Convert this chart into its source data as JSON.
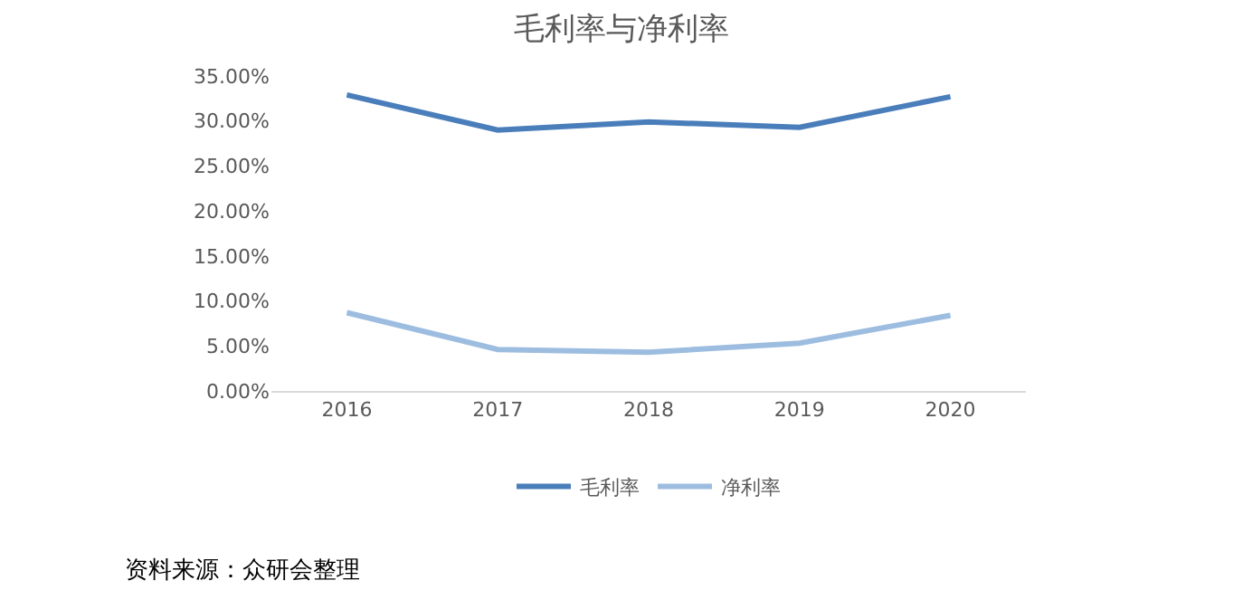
{
  "chart_data": {
    "type": "line",
    "title": "毛利率与净利率",
    "categories": [
      "2016",
      "2017",
      "2018",
      "2019",
      "2020"
    ],
    "series": [
      {
        "name": "毛利率",
        "color": "#4a7ebb",
        "values": [
          32.9,
          29.0,
          29.9,
          29.3,
          32.7
        ]
      },
      {
        "name": "净利率",
        "color": "#9dbde0",
        "values": [
          8.7,
          4.6,
          4.3,
          5.3,
          8.4
        ]
      }
    ],
    "ylim": [
      0,
      35
    ],
    "yticks": [
      {
        "value": 0,
        "label": "0.00%"
      },
      {
        "value": 5,
        "label": "5.00%"
      },
      {
        "value": 10,
        "label": "10.00%"
      },
      {
        "value": 15,
        "label": "15.00%"
      },
      {
        "value": 20,
        "label": "20.00%"
      },
      {
        "value": 25,
        "label": "25.00%"
      },
      {
        "value": 30,
        "label": "30.00%"
      },
      {
        "value": 35,
        "label": "35.00%"
      }
    ],
    "grid": false,
    "legend": "bottom",
    "marker": "none",
    "line_style": "solid",
    "annotations": [
      "资料来源：众研会整理"
    ]
  }
}
